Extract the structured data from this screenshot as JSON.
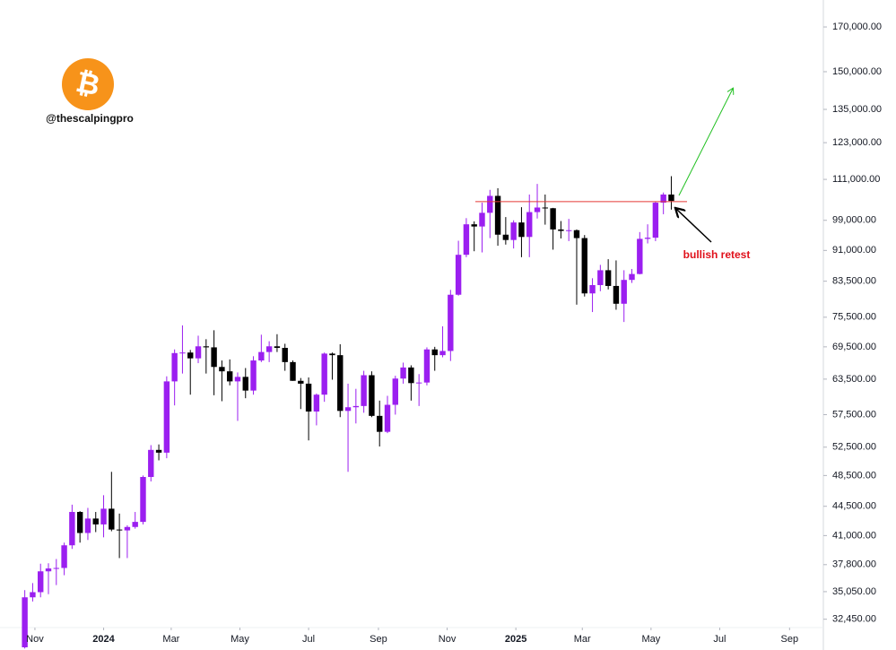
{
  "watermark": {
    "logo": "₿",
    "handle": "@thescalpingpro"
  },
  "chart_data": {
    "type": "candlestick",
    "log_scale": true,
    "up_color": "#9b1ff0",
    "down_color": "#000000",
    "x": [
      "2023-10-23",
      "2023-10-30",
      "2023-11-06",
      "2023-11-13",
      "2023-11-20",
      "2023-11-27",
      "2023-12-04",
      "2023-12-11",
      "2023-12-18",
      "2023-12-25",
      "2024-01-01",
      "2024-01-08",
      "2024-01-15",
      "2024-01-22",
      "2024-01-29",
      "2024-02-05",
      "2024-02-12",
      "2024-02-19",
      "2024-02-26",
      "2024-03-04",
      "2024-03-11",
      "2024-03-18",
      "2024-03-25",
      "2024-04-01",
      "2024-04-08",
      "2024-04-15",
      "2024-04-22",
      "2024-04-29",
      "2024-05-06",
      "2024-05-13",
      "2024-05-20",
      "2024-05-27",
      "2024-06-03",
      "2024-06-10",
      "2024-06-17",
      "2024-06-24",
      "2024-07-01",
      "2024-07-08",
      "2024-07-15",
      "2024-07-22",
      "2024-07-29",
      "2024-08-05",
      "2024-08-12",
      "2024-08-19",
      "2024-08-26",
      "2024-09-02",
      "2024-09-09",
      "2024-09-16",
      "2024-09-23",
      "2024-09-30",
      "2024-10-07",
      "2024-10-14",
      "2024-10-21",
      "2024-10-28",
      "2024-11-04",
      "2024-11-11",
      "2024-11-18",
      "2024-11-25",
      "2024-12-02",
      "2024-12-09",
      "2024-12-16",
      "2024-12-23",
      "2024-12-30",
      "2025-01-06",
      "2025-01-13",
      "2025-01-20",
      "2025-01-27",
      "2025-02-03",
      "2025-02-10",
      "2025-02-17",
      "2025-02-24",
      "2025-03-03",
      "2025-03-10",
      "2025-03-17",
      "2025-03-24",
      "2025-03-31",
      "2025-04-07",
      "2025-04-14",
      "2025-04-21",
      "2025-04-28",
      "2025-05-05",
      "2025-05-12",
      "2025-05-19"
    ],
    "open": [
      30000,
      34500,
      35000,
      37100,
      37400,
      37450,
      39900,
      43800,
      41300,
      43000,
      42300,
      44200,
      41700,
      41600,
      42000,
      42600,
      48300,
      52100,
      51700,
      63100,
      68300,
      68400,
      67300,
      69600,
      69400,
      65700,
      64900,
      63100,
      63900,
      61500,
      66900,
      68500,
      69600,
      69300,
      66600,
      63200,
      62700,
      58000,
      60800,
      68200,
      67900,
      58100,
      58700,
      58900,
      64200,
      57300,
      54800,
      59100,
      63600,
      65600,
      62800,
      62900,
      69000,
      67900,
      68700,
      80400,
      89900,
      97900,
      97300,
      101100,
      106000,
      95100,
      93700,
      98400,
      94500,
      101300,
      102600,
      102400,
      96500,
      96100,
      96300,
      94200,
      80700,
      82600,
      86100,
      82400,
      78400,
      83800,
      85200,
      94000,
      94300,
      104000,
      106400
    ],
    "high": [
      35200,
      35900,
      37900,
      37950,
      38400,
      40200,
      44700,
      43900,
      44300,
      43800,
      45900,
      49000,
      43600,
      42200,
      43800,
      48500,
      52800,
      52900,
      64000,
      69000,
      73800,
      68900,
      71700,
      71000,
      72800,
      66900,
      67100,
      64700,
      65500,
      67700,
      71900,
      70600,
      72000,
      70100,
      66900,
      63700,
      63800,
      61000,
      68400,
      68400,
      70000,
      62700,
      61800,
      65000,
      64900,
      59800,
      60600,
      64100,
      66500,
      66000,
      64400,
      69400,
      69500,
      73600,
      81500,
      93500,
      99600,
      98700,
      104000,
      107800,
      108300,
      99900,
      99000,
      102700,
      106400,
      109600,
      106400,
      102500,
      98800,
      99400,
      96500,
      95000,
      84200,
      87400,
      88800,
      88500,
      86100,
      86400,
      95800,
      97900,
      104400,
      107000,
      112000
    ],
    "low": [
      29900,
      34100,
      34500,
      34800,
      35700,
      36700,
      39500,
      40200,
      40500,
      41400,
      40800,
      41500,
      38500,
      38500,
      41800,
      42300,
      47700,
      50600,
      50900,
      59000,
      64500,
      60800,
      66400,
      64500,
      60700,
      59700,
      62400,
      56500,
      60200,
      60800,
      66600,
      66600,
      68500,
      65000,
      63200,
      58400,
      53500,
      55800,
      59600,
      63400,
      57100,
      49000,
      56100,
      57800,
      57100,
      52600,
      54600,
      57500,
      62700,
      59800,
      58900,
      62400,
      65000,
      67500,
      66800,
      80200,
      89300,
      90800,
      90500,
      94200,
      92200,
      92500,
      91500,
      89300,
      89300,
      99500,
      97800,
      91200,
      94100,
      93400,
      78200,
      80000,
      76600,
      81200,
      81600,
      77100,
      74500,
      83100,
      85100,
      92800,
      93400,
      100700,
      102000
    ],
    "close": [
      34500,
      35000,
      37100,
      37400,
      37450,
      39900,
      43800,
      41300,
      43000,
      42300,
      44200,
      41700,
      41600,
      42000,
      42600,
      48300,
      52100,
      51700,
      63100,
      68300,
      68400,
      67300,
      69600,
      69400,
      65700,
      64900,
      63100,
      63900,
      61500,
      66900,
      68500,
      69600,
      69300,
      66600,
      63200,
      62700,
      58000,
      60800,
      68200,
      67900,
      58100,
      58700,
      58900,
      64200,
      57300,
      54800,
      59100,
      63600,
      65600,
      62800,
      62900,
      69000,
      67900,
      68700,
      80400,
      89900,
      97900,
      97300,
      101100,
      106000,
      95100,
      93700,
      98400,
      94500,
      101300,
      102600,
      102400,
      96500,
      96100,
      96300,
      94200,
      80700,
      82600,
      86100,
      82400,
      78400,
      83800,
      85200,
      94000,
      94300,
      104000,
      106400,
      104500
    ],
    "xlim": [
      "2023-10-01",
      "2025-10-01"
    ],
    "xticks": [
      {
        "value": "2023-11-01",
        "label": "Nov"
      },
      {
        "value": "2024-01-01",
        "label": "2024"
      },
      {
        "value": "2024-03-01",
        "label": "Mar"
      },
      {
        "value": "2024-05-01",
        "label": "May"
      },
      {
        "value": "2024-07-01",
        "label": "Jul"
      },
      {
        "value": "2024-09-01",
        "label": "Sep"
      },
      {
        "value": "2024-11-01",
        "label": "Nov"
      },
      {
        "value": "2025-01-01",
        "label": "2025"
      },
      {
        "value": "2025-03-01",
        "label": "Mar"
      },
      {
        "value": "2025-05-01",
        "label": "May"
      },
      {
        "value": "2025-07-01",
        "label": "Jul"
      },
      {
        "value": "2025-09-01",
        "label": "Sep"
      }
    ],
    "ylim": [
      31700,
      183300
    ],
    "yticks": [
      {
        "value": 32450,
        "label": "32,450.00"
      },
      {
        "value": 35050,
        "label": "35,050.00"
      },
      {
        "value": 37800,
        "label": "37,800.00"
      },
      {
        "value": 41000,
        "label": "41,000.00"
      },
      {
        "value": 44500,
        "label": "44,500.00"
      },
      {
        "value": 48500,
        "label": "48,500.00"
      },
      {
        "value": 52500,
        "label": "52,500.00"
      },
      {
        "value": 57500,
        "label": "57,500.00"
      },
      {
        "value": 63500,
        "label": "63,500.00"
      },
      {
        "value": 69500,
        "label": "69,500.00"
      },
      {
        "value": 75500,
        "label": "75,500.00"
      },
      {
        "value": 83500,
        "label": "83,500.00"
      },
      {
        "value": 91000,
        "label": "91,000.00"
      },
      {
        "value": 99000,
        "label": "99,000.00"
      },
      {
        "value": 111000,
        "label": "111,000.00"
      },
      {
        "value": 123000,
        "label": "123,000.00"
      },
      {
        "value": 135000,
        "label": "135,000.00"
      },
      {
        "value": 150000,
        "label": "150,000.00"
      },
      {
        "value": 170000,
        "label": "170,000.00"
      }
    ],
    "support_level": 104300,
    "support_color": "#e53935",
    "annotation": "bullish retest",
    "annotation_color": "#e0101a"
  }
}
